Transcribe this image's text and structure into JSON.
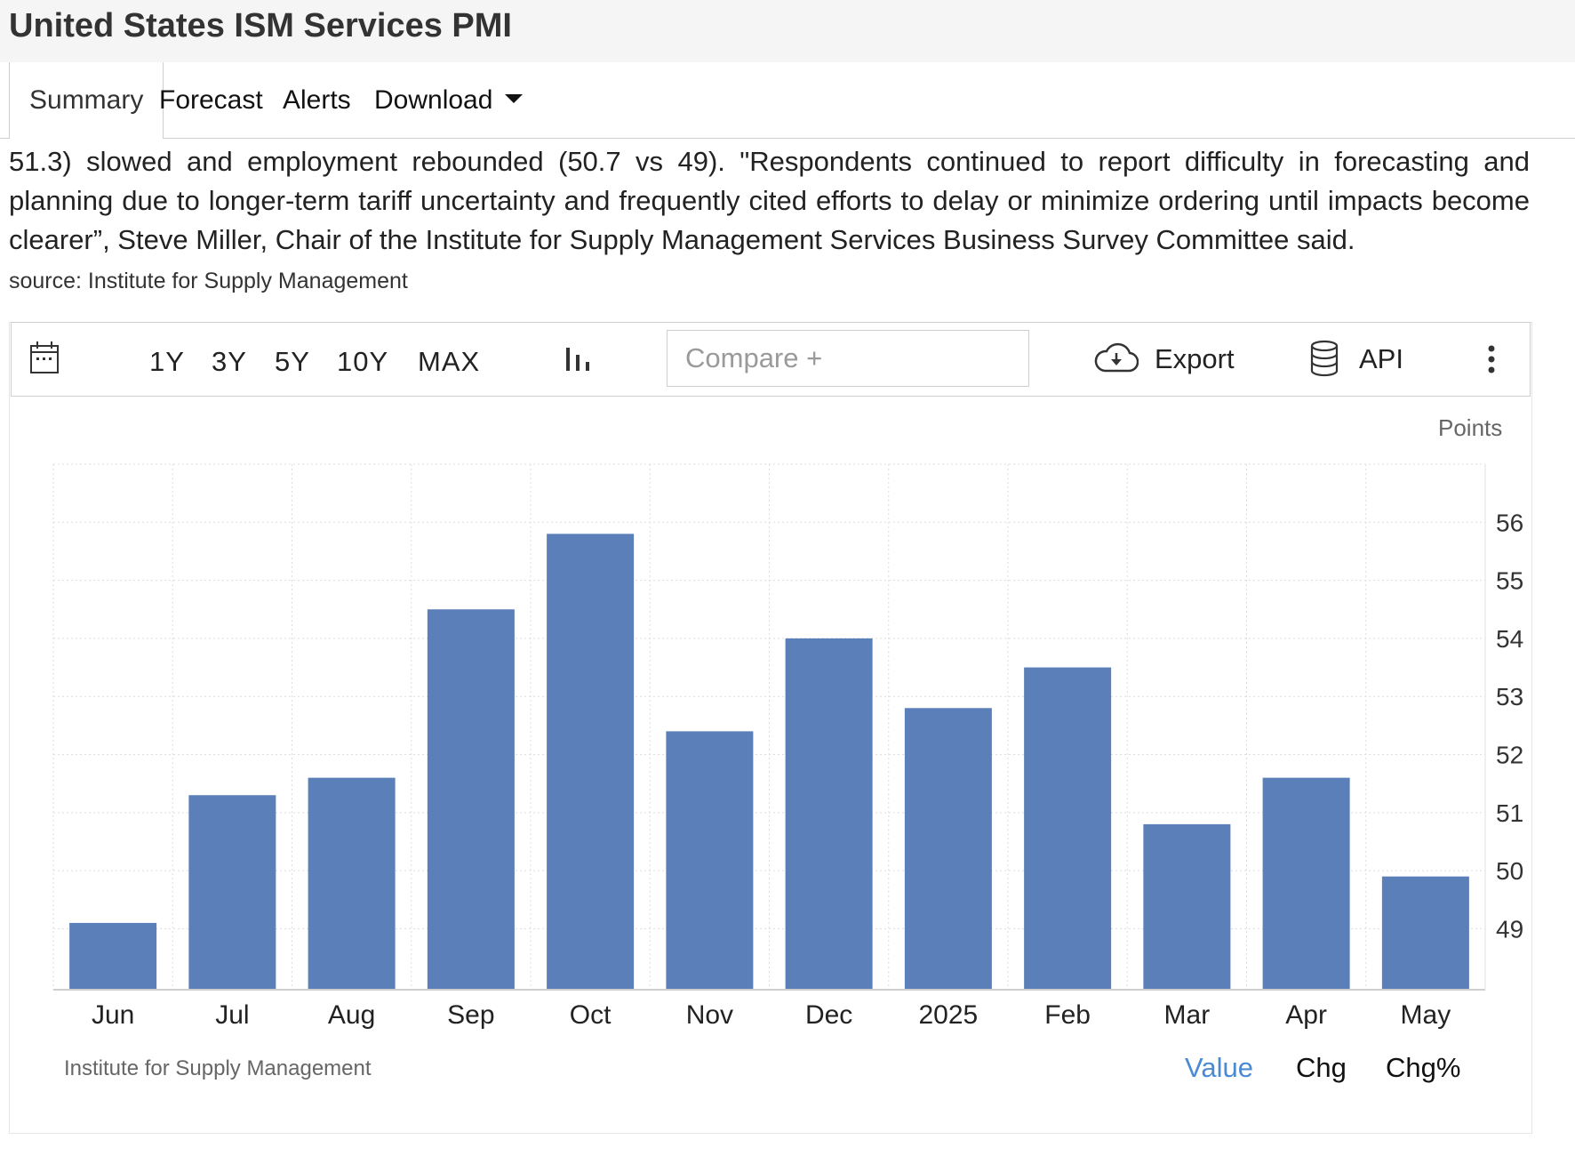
{
  "page": {
    "title": "United States ISM Services PMI"
  },
  "tabs": [
    {
      "label": "Summary"
    },
    {
      "label": "Forecast"
    },
    {
      "label": "Alerts"
    },
    {
      "label": "Download"
    }
  ],
  "summary": {
    "text": "51.3) slowed and employment rebounded (50.7 vs 49). \"Respondents continued to report difficulty in forecasting and planning due to longer-term tariff uncertainty and frequently cited efforts to delay or minimize ordering until impacts become clearer”, Steve Miller, Chair of the Institute for Supply Management Services Business Survey Committee said.",
    "source": "source: Institute for Supply Management"
  },
  "toolbar": {
    "calendar_icon": "calendar-icon",
    "ranges": [
      "1Y",
      "3Y",
      "5Y",
      "10Y",
      "MAX"
    ],
    "chart_type_icon": "bar-chart-icon",
    "compare_placeholder": "Compare +",
    "export_label": "Export",
    "export_icon": "cloud-download-icon",
    "api_label": "API",
    "api_icon": "database-icon",
    "more_icon": "more-vertical-icon"
  },
  "chart_footer": {
    "source": "Institute for Supply Management",
    "value_label": "Value",
    "chg_label": "Chg",
    "chgpct_label": "Chg%"
  },
  "colors": {
    "bar": "#5b7fb8",
    "accent": "#4a8ad3"
  },
  "chart_data": {
    "type": "bar",
    "title": "",
    "units": "Points",
    "categories": [
      "Jun",
      "Jul",
      "Aug",
      "Sep",
      "Oct",
      "Nov",
      "Dec",
      "2025",
      "Feb",
      "Mar",
      "Apr",
      "May"
    ],
    "values": [
      49.1,
      51.3,
      51.6,
      54.5,
      55.8,
      52.4,
      54.0,
      52.8,
      53.5,
      50.8,
      51.6,
      49.9
    ],
    "y_ticks": [
      49,
      50,
      51,
      52,
      53,
      54,
      55,
      56
    ],
    "ylim": [
      47.95,
      57.0
    ],
    "y_axis_side": "right",
    "grid": true
  }
}
